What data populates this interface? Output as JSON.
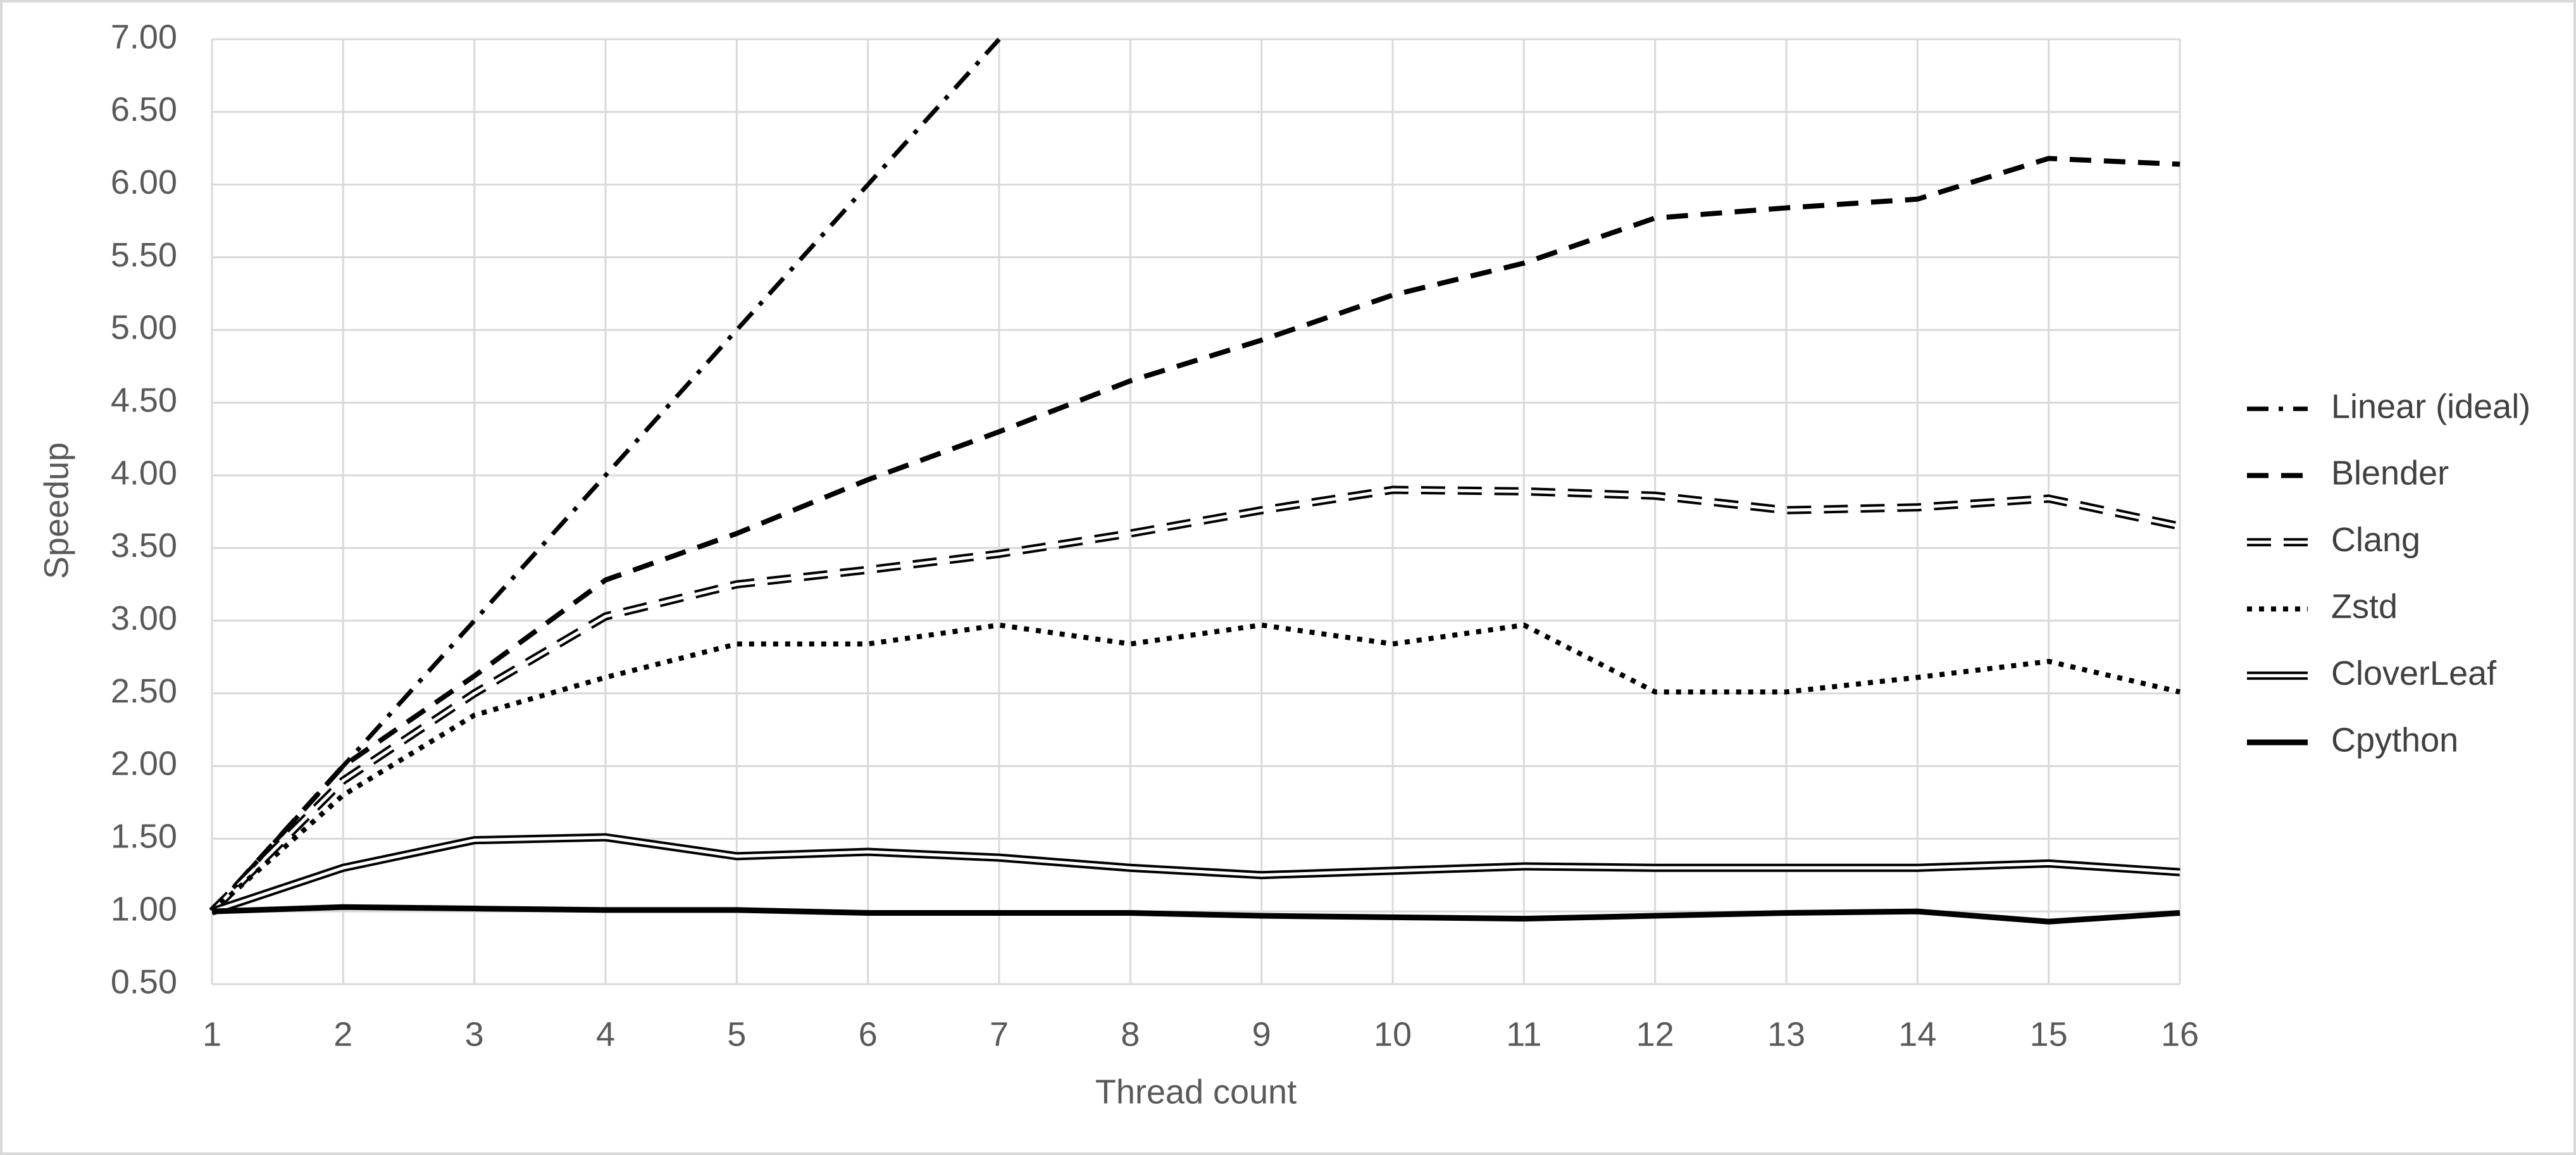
{
  "chart_data": {
    "type": "line",
    "xlabel": "Thread count",
    "ylabel": "Speedup",
    "x": [
      1,
      2,
      3,
      4,
      5,
      6,
      7,
      8,
      9,
      10,
      11,
      12,
      13,
      14,
      15,
      16
    ],
    "xlim": [
      1,
      16
    ],
    "xticks": [
      1,
      2,
      3,
      4,
      5,
      6,
      7,
      8,
      9,
      10,
      11,
      12,
      13,
      14,
      15,
      16
    ],
    "ylim": [
      0.5,
      7
    ],
    "yticks": [
      {
        "value": 0.5,
        "label": "0.50"
      },
      {
        "value": 1,
        "label": "1.00"
      },
      {
        "value": 1.5,
        "label": "1.50"
      },
      {
        "value": 2,
        "label": "2.00"
      },
      {
        "value": 2.5,
        "label": "2.50"
      },
      {
        "value": 3,
        "label": "3.00"
      },
      {
        "value": 3.5,
        "label": "3.50"
      },
      {
        "value": 4,
        "label": "4.00"
      },
      {
        "value": 4.5,
        "label": "4.50"
      },
      {
        "value": 5,
        "label": "5.00"
      },
      {
        "value": 5.5,
        "label": "5.50"
      },
      {
        "value": 6,
        "label": "6.00"
      },
      {
        "value": 6.5,
        "label": "6.50"
      },
      {
        "value": 7,
        "label": "7.00"
      }
    ],
    "grid": true,
    "legend": "right",
    "series": [
      {
        "name": "Linear (ideal)",
        "color": "#000000",
        "style": "dash-dot",
        "values": [
          1,
          2,
          3,
          4,
          5,
          6,
          7,
          null,
          null,
          null,
          null,
          null,
          null,
          null,
          null,
          null
        ]
      },
      {
        "name": "Blender",
        "color": "#000000",
        "style": "dash",
        "values": [
          1,
          2.0,
          2.62,
          3.28,
          3.6,
          3.97,
          4.3,
          4.65,
          4.93,
          5.24,
          5.46,
          5.77,
          5.84,
          5.9,
          6.18,
          6.14
        ]
      },
      {
        "name": "Clang",
        "color": "#000000",
        "style": "double-dash",
        "values": [
          1,
          1.9,
          2.5,
          3.03,
          3.25,
          3.35,
          3.46,
          3.6,
          3.76,
          3.9,
          3.89,
          3.86,
          3.76,
          3.78,
          3.84,
          3.65
        ]
      },
      {
        "name": "Zstd",
        "color": "#000000",
        "style": "dot",
        "values": [
          1,
          1.8,
          2.35,
          2.61,
          2.84,
          2.84,
          2.97,
          2.84,
          2.97,
          2.84,
          2.97,
          2.51,
          2.51,
          2.61,
          2.72,
          2.51
        ]
      },
      {
        "name": "CloverLeaf",
        "color": "#000000",
        "style": "double",
        "values": [
          1,
          1.3,
          1.49,
          1.51,
          1.38,
          1.41,
          1.37,
          1.3,
          1.25,
          1.28,
          1.31,
          1.3,
          1.3,
          1.3,
          1.33,
          1.27
        ]
      },
      {
        "name": "Cpython",
        "color": "#000000",
        "style": "solid",
        "values": [
          1,
          1.03,
          1.02,
          1.01,
          1.01,
          0.99,
          0.99,
          0.99,
          0.97,
          0.96,
          0.95,
          0.97,
          0.99,
          1.0,
          0.93,
          0.99
        ]
      }
    ]
  }
}
